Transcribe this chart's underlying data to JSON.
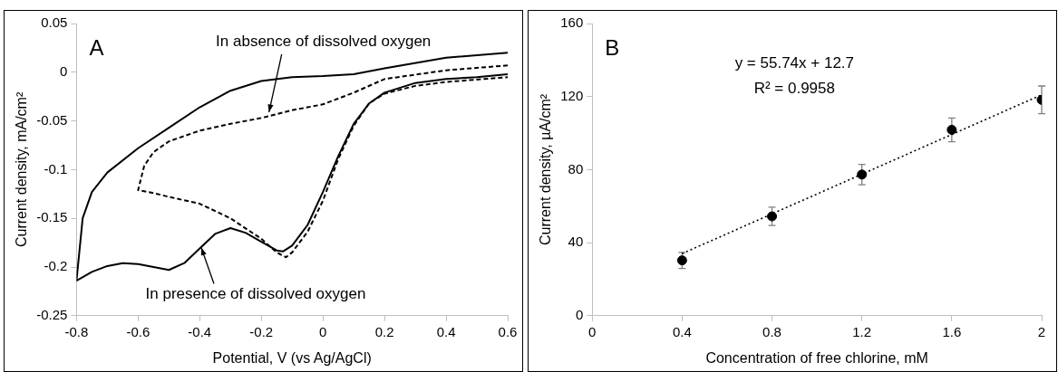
{
  "chart_data": [
    {
      "type": "line",
      "title": "A",
      "xlabel": "Potential, V (vs Ag/AgCl)",
      "ylabel": "Current density, mA/cm²",
      "xlim": [
        -0.8,
        0.6
      ],
      "xticks": [
        -0.8,
        -0.6,
        -0.4,
        -0.2,
        0,
        0.2,
        0.4,
        0.6
      ],
      "ylim": [
        -0.25,
        0.05
      ],
      "yticks": [
        -0.25,
        -0.2,
        -0.15,
        -0.1,
        -0.05,
        0,
        0.05
      ],
      "grid": false,
      "marker": "none",
      "series": [
        {
          "color": "#000000",
          "line_style": "solid",
          "x": [
            0.6,
            0.4,
            0.2,
            0.1,
            0,
            -0.1,
            -0.2,
            -0.3,
            -0.4,
            -0.5,
            -0.6,
            -0.7,
            -0.75,
            -0.78,
            -0.8,
            -0.75,
            -0.7,
            -0.65,
            -0.6,
            -0.55,
            -0.5,
            -0.45,
            -0.4,
            -0.35,
            -0.3,
            -0.25,
            -0.2,
            -0.15,
            -0.13,
            -0.1,
            -0.05,
            0,
            0.05,
            0.1,
            0.15,
            0.2,
            0.3,
            0.4,
            0.5,
            0.6
          ],
          "values": [
            0.02,
            0.015,
            0.004,
            -0.002,
            -0.004,
            -0.005,
            -0.009,
            -0.019,
            -0.036,
            -0.057,
            -0.078,
            -0.103,
            -0.123,
            -0.15,
            -0.214,
            -0.205,
            -0.199,
            -0.196,
            -0.197,
            -0.2,
            -0.203,
            -0.196,
            -0.181,
            -0.166,
            -0.16,
            -0.165,
            -0.174,
            -0.183,
            -0.184,
            -0.178,
            -0.157,
            -0.123,
            -0.086,
            -0.053,
            -0.032,
            -0.021,
            -0.011,
            -0.007,
            -0.005,
            -0.002
          ]
        },
        {
          "color": "#000000",
          "line_style": "dashed",
          "x": [
            0.6,
            0.4,
            0.2,
            0.1,
            0,
            -0.1,
            -0.2,
            -0.3,
            -0.4,
            -0.5,
            -0.55,
            -0.58,
            -0.6,
            -0.55,
            -0.5,
            -0.4,
            -0.3,
            -0.2,
            -0.15,
            -0.12,
            -0.1,
            -0.05,
            0,
            0.05,
            0.1,
            0.15,
            0.2,
            0.3,
            0.4,
            0.6
          ],
          "values": [
            0.007,
            0.002,
            -0.007,
            -0.021,
            -0.033,
            -0.039,
            -0.047,
            -0.053,
            -0.06,
            -0.071,
            -0.082,
            -0.096,
            -0.121,
            -0.124,
            -0.128,
            -0.135,
            -0.15,
            -0.171,
            -0.185,
            -0.19,
            -0.185,
            -0.164,
            -0.132,
            -0.089,
            -0.055,
            -0.032,
            -0.022,
            -0.014,
            -0.01,
            -0.005
          ]
        }
      ],
      "annotations": [
        {
          "text": "In absence of dissolved oxygen",
          "x": -0.175,
          "y": -0.041
        },
        {
          "text": "In presence of dissolved oxygen",
          "x": -0.395,
          "y": -0.18
        }
      ]
    },
    {
      "type": "scatter",
      "title": "B",
      "xlabel": "Concentration of free chlorine, mM",
      "ylabel": "Current density, µA/cm²",
      "xlim": [
        0,
        2
      ],
      "xticks": [
        0,
        0.4,
        0.8,
        1.2,
        1.6,
        2
      ],
      "ylim": [
        0,
        160
      ],
      "yticks": [
        0,
        40,
        80,
        120,
        160
      ],
      "grid": false,
      "marker": "circle",
      "series": [
        {
          "color": "#000000",
          "x": [
            0.4,
            0.8,
            1.2,
            1.6,
            2
          ],
          "values": [
            30.3,
            54.4,
            77.3,
            101.8,
            118.2
          ],
          "errors": [
            4.4,
            5,
            5.6,
            6.5,
            7.6
          ]
        },
        {
          "type": "line",
          "color": "#000000",
          "line_style": "dotted",
          "marker": "none",
          "x": [
            0.4,
            2
          ],
          "values": [
            34,
            121
          ]
        }
      ],
      "annotations": [
        "y = 55.74x + 12.7",
        "R² = 0.9958"
      ]
    }
  ]
}
